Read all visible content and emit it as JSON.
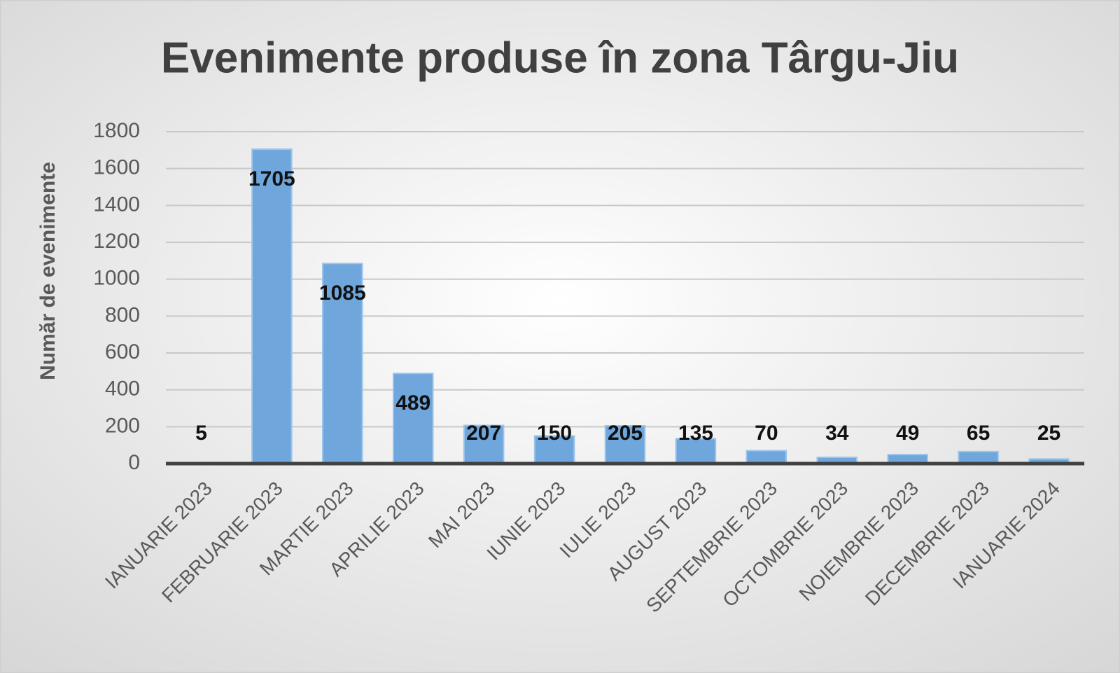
{
  "chart_data": {
    "type": "bar",
    "title": "Evenimente produse în zona Târgu-Jiu",
    "y_label": "Număr de evenimente",
    "categories": [
      "IANUARIE 2023",
      "FEBRUARIE 2023",
      "MARTIE 2023",
      "APRILIE 2023",
      "MAI 2023",
      "IUNIE 2023",
      "IULIE 2023",
      "AUGUST 2023",
      "SEPTEMBRIE 2023",
      "OCTOMBRIE 2023",
      "NOIEMBRIE 2023",
      "DECEMBRIE 2023",
      "IANUARIE 2024"
    ],
    "values": [
      5,
      1705,
      1085,
      489,
      207,
      150,
      205,
      135,
      70,
      34,
      49,
      65,
      25
    ],
    "color": "#6fa7dc",
    "ylim": [
      0,
      1800
    ],
    "yticks": [
      0,
      200,
      400,
      600,
      800,
      1000,
      1200,
      1400,
      1600,
      1800
    ],
    "grid": true
  }
}
